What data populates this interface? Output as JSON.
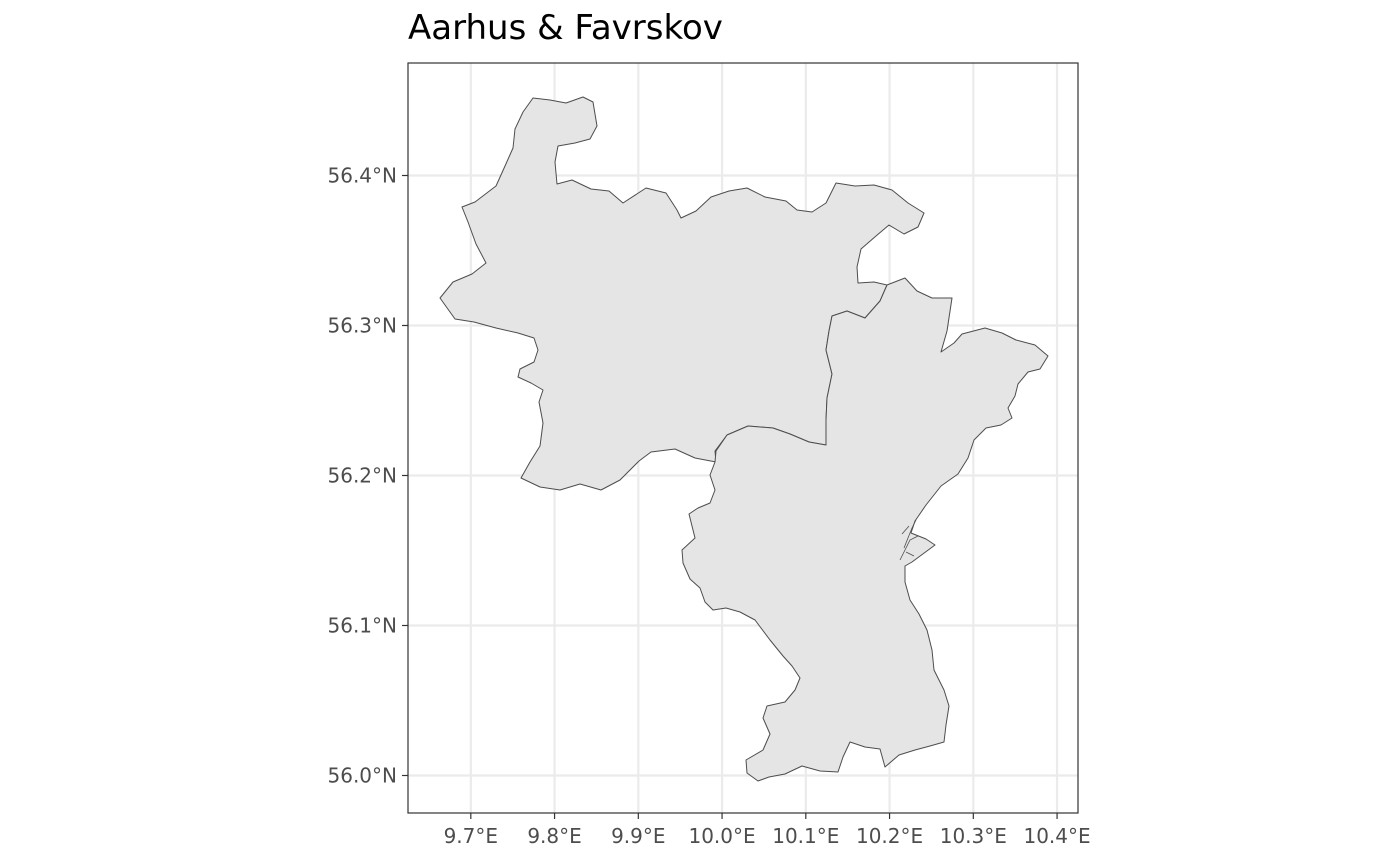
{
  "title": "Aarhus & Favrskov",
  "map": {
    "projection": "lon-lat",
    "xlim": [
      9.625,
      10.425
    ],
    "ylim": [
      55.975,
      56.475
    ],
    "lon_ticks": [
      "9.7°E",
      "9.8°E",
      "9.9°E",
      "10.0°E",
      "10.1°E",
      "10.2°E",
      "10.3°E",
      "10.4°E"
    ],
    "lat_ticks": [
      "56.0°N",
      "56.1°N",
      "56.2°N",
      "56.3°N",
      "56.4°N"
    ],
    "grid": true,
    "region_fill": "#e5e5e5",
    "region_stroke": "#4d4d4d",
    "regions": [
      "Favrskov",
      "Aarhus"
    ]
  },
  "colors": {
    "panel_border": "#333333",
    "grid": "#ebebeb",
    "tick_text": "#4d4d4d"
  }
}
